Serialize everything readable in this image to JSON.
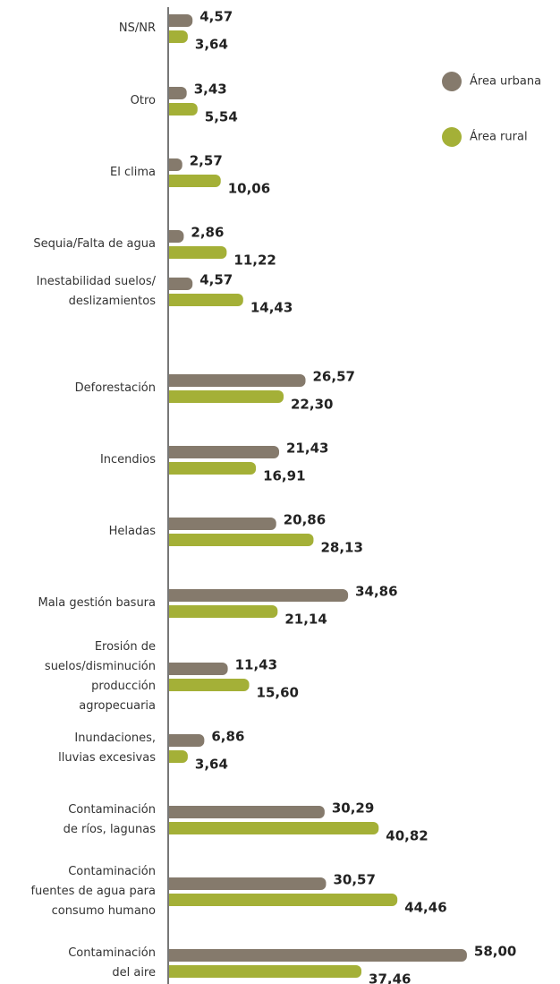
{
  "chart_data": {
    "type": "bar",
    "orientation": "horizontal",
    "categories": [
      "NS/NR",
      "Otro",
      "El clima",
      "Sequia/Falta de agua",
      "Inestabilidad suelos/\ndeslizamientos",
      "Deforestación",
      "Incendios",
      "Heladas",
      "Mala gestión basura",
      "Erosión de\nsuelos/disminución\nproducción\nagropecuaria",
      "Inundaciones,\nlluvias excesivas",
      "Contaminación\nde ríos, lagunas",
      "Contaminación\nfuentes de agua para\nconsumo humano",
      "Contaminación\ndel aire"
    ],
    "series": [
      {
        "name": "Área urbana",
        "color": "#857a6c",
        "values": [
          4.57,
          3.43,
          2.57,
          2.86,
          4.57,
          26.57,
          21.43,
          20.86,
          34.86,
          11.43,
          6.86,
          30.29,
          30.57,
          58.0
        ],
        "value_labels": [
          "4,57",
          "3,43",
          "2,57",
          "2,86",
          "4,57",
          "26,57",
          "21,43",
          "20,86",
          "34,86",
          "11,43",
          "6,86",
          "30,29",
          "30,57",
          "58,00"
        ]
      },
      {
        "name": "Área rural",
        "color": "#a4b037",
        "values": [
          3.64,
          5.54,
          10.06,
          11.22,
          14.43,
          22.3,
          16.91,
          28.13,
          21.14,
          15.6,
          3.64,
          40.82,
          44.46,
          37.46
        ],
        "value_labels": [
          "3,64",
          "5,54",
          "10,06",
          "11,22",
          "14,43",
          "22,30",
          "16,91",
          "28,13",
          "21,14",
          "15,60",
          "3,64",
          "40,82",
          "44,46",
          "37,46"
        ]
      }
    ],
    "legend": "top-right"
  }
}
